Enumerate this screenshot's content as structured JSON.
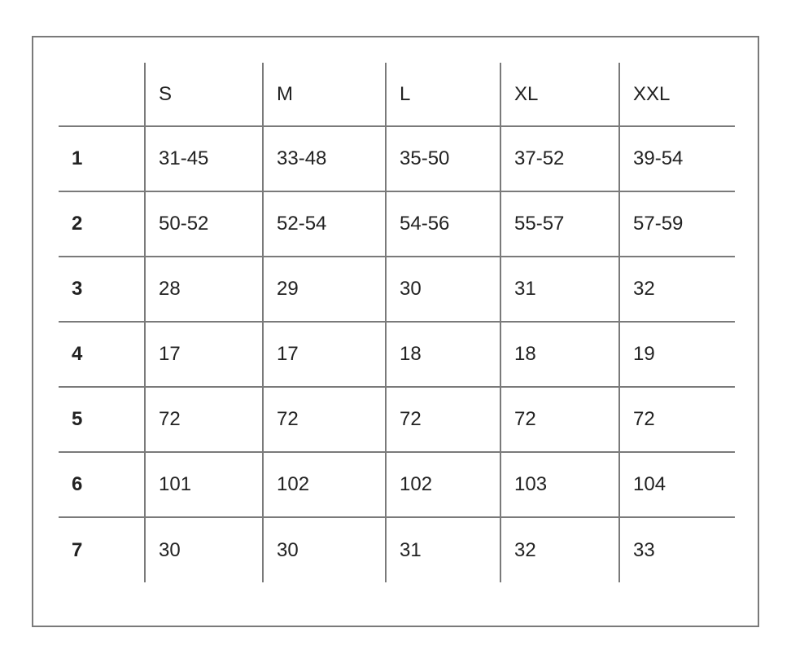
{
  "table": {
    "headers": [
      "",
      "S",
      "M",
      "L",
      "XL",
      "XXL"
    ],
    "rows": [
      {
        "label": "1",
        "cells": [
          "31-45",
          "33-48",
          "35-50",
          "37-52",
          "39-54"
        ]
      },
      {
        "label": "2",
        "cells": [
          "50-52",
          "52-54",
          "54-56",
          "55-57",
          "57-59"
        ]
      },
      {
        "label": "3",
        "cells": [
          "28",
          "29",
          "30",
          "31",
          "32"
        ]
      },
      {
        "label": "4",
        "cells": [
          "17",
          "17",
          "18",
          "18",
          "19"
        ]
      },
      {
        "label": "5",
        "cells": [
          "72",
          "72",
          "72",
          "72",
          "72"
        ]
      },
      {
        "label": "6",
        "cells": [
          "101",
          "102",
          "102",
          "103",
          "104"
        ]
      },
      {
        "label": "7",
        "cells": [
          "30",
          "30",
          "31",
          "32",
          "33"
        ]
      }
    ]
  }
}
